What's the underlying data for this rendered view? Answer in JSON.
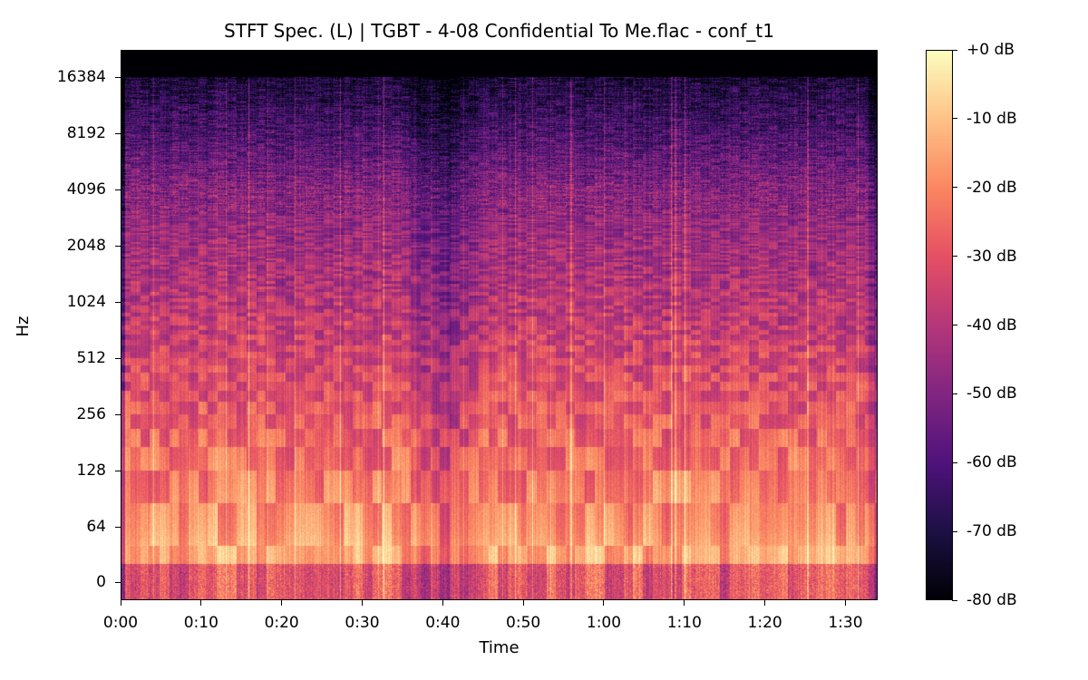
{
  "chart_data": {
    "type": "heatmap",
    "title": "STFT Spec. (L) | TGBT - 4-08 Confidential To Me.flac - conf_t1",
    "xlabel": "Time",
    "ylabel": "Hz",
    "x_range_seconds": [
      0,
      94
    ],
    "y_range_hz": [
      0,
      22050
    ],
    "y_scale": "log",
    "x_ticks": [
      "0:00",
      "0:10",
      "0:20",
      "0:30",
      "0:40",
      "0:50",
      "1:00",
      "1:10",
      "1:20",
      "1:30"
    ],
    "x_tick_values": [
      0,
      10,
      20,
      30,
      40,
      50,
      60,
      70,
      80,
      90
    ],
    "y_ticks": [
      "0",
      "64",
      "128",
      "256",
      "512",
      "1024",
      "2048",
      "4096",
      "8192",
      "16384"
    ],
    "y_tick_values": [
      0,
      64,
      128,
      256,
      512,
      1024,
      2048,
      4096,
      8192,
      16384
    ],
    "colorbar": {
      "range_db": [
        -80,
        0
      ],
      "ticks": [
        "+0 dB",
        "-10 dB",
        "-20 dB",
        "-30 dB",
        "-40 dB",
        "-50 dB",
        "-60 dB",
        "-70 dB",
        "-80 dB"
      ],
      "tick_values": [
        0,
        -10,
        -20,
        -30,
        -40,
        -50,
        -60,
        -70,
        -80
      ],
      "colormap": "magma",
      "colormap_stops": [
        "#000004",
        "#1c1044",
        "#4f127b",
        "#812581",
        "#b5367a",
        "#e55064",
        "#fb8761",
        "#fec287",
        "#fcfdbf"
      ]
    },
    "grid": false
  }
}
